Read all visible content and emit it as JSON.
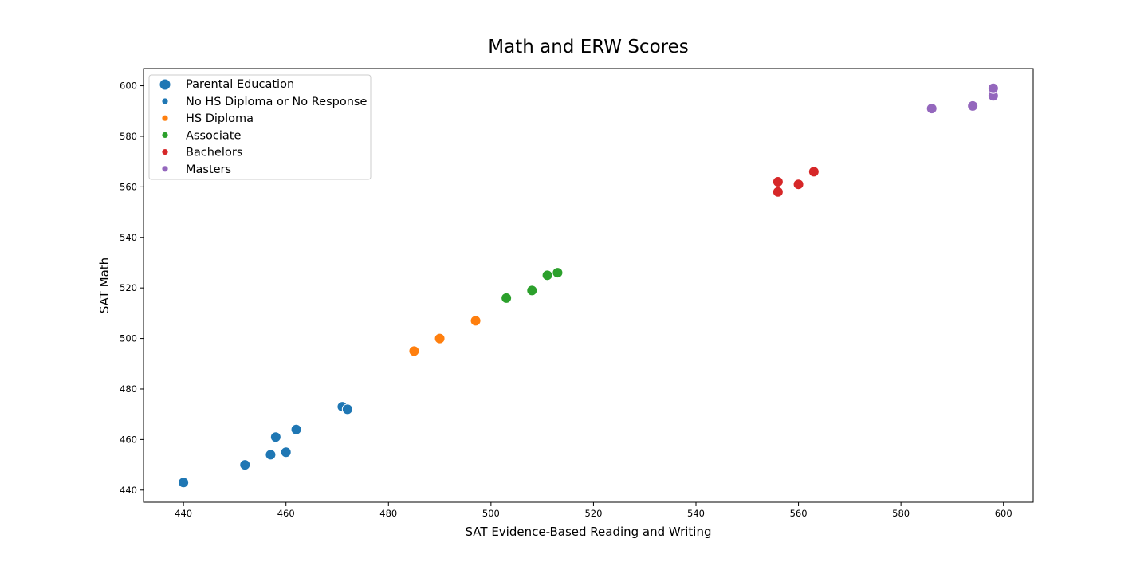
{
  "chart_data": {
    "type": "scatter",
    "title": "Math and ERW Scores",
    "xlabel": "SAT Evidence-Based Reading and Writing",
    "ylabel": "SAT Math",
    "xlim": [
      432.2,
      605.8
    ],
    "ylim": [
      435.2,
      606.8
    ],
    "xticks": [
      440,
      460,
      480,
      500,
      520,
      540,
      560,
      580,
      600
    ],
    "yticks": [
      440,
      460,
      480,
      500,
      520,
      540,
      560,
      580,
      600
    ],
    "grid": false,
    "legend": {
      "placement": "top-left",
      "title": "Parental Education",
      "entries": [
        "No HS Diploma or No Response",
        "HS Diploma",
        "Associate",
        "Bachelors",
        "Masters"
      ]
    },
    "series": [
      {
        "name": "No HS Diploma or No Response",
        "color": "#1f77b4",
        "points": [
          [
            440,
            443
          ],
          [
            452,
            450
          ],
          [
            457,
            454
          ],
          [
            458,
            461
          ],
          [
            460,
            455
          ],
          [
            462,
            464
          ],
          [
            471,
            473
          ],
          [
            472,
            472
          ]
        ]
      },
      {
        "name": "HS Diploma",
        "color": "#ff7f0e",
        "points": [
          [
            485,
            495
          ],
          [
            490,
            500
          ],
          [
            497,
            507
          ]
        ]
      },
      {
        "name": "Associate",
        "color": "#2ca02c",
        "points": [
          [
            503,
            516
          ],
          [
            508,
            519
          ],
          [
            511,
            525
          ],
          [
            513,
            526
          ]
        ]
      },
      {
        "name": "Bachelors",
        "color": "#d62728",
        "points": [
          [
            556,
            558
          ],
          [
            556,
            562
          ],
          [
            560,
            561
          ],
          [
            563,
            566
          ]
        ]
      },
      {
        "name": "Masters",
        "color": "#9467bd",
        "points": [
          [
            586,
            591
          ],
          [
            594,
            592
          ],
          [
            598,
            596
          ],
          [
            598,
            599
          ]
        ]
      }
    ]
  }
}
